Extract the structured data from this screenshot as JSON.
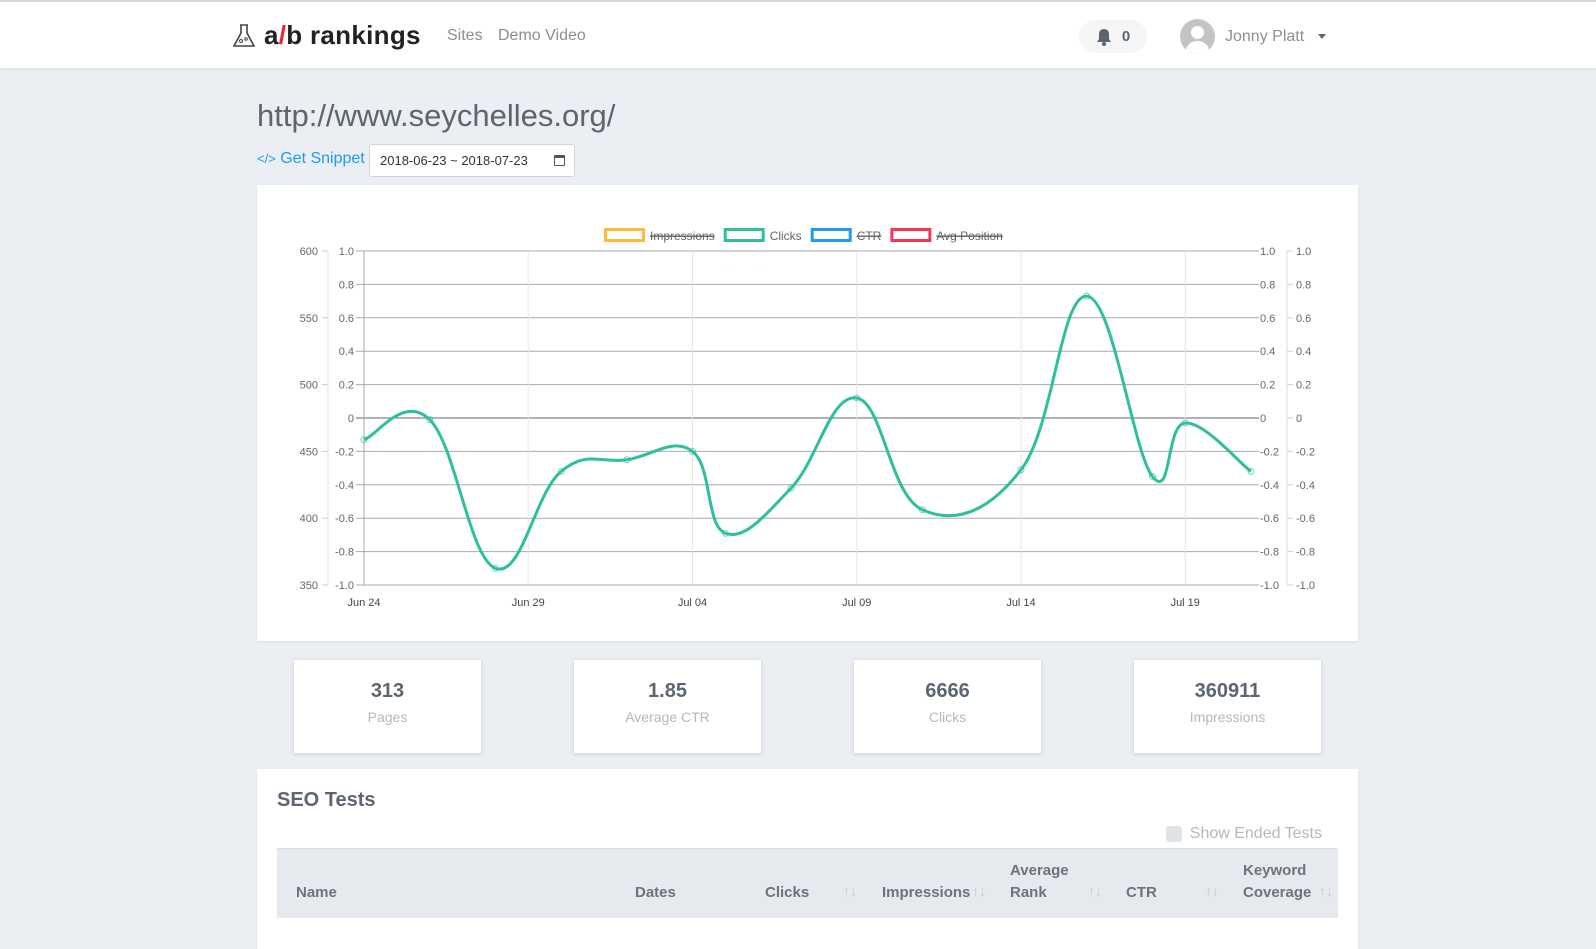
{
  "navbar": {
    "logo_text_a": "a",
    "logo_text_slash": "/",
    "logo_text_b": "b rankings",
    "links": [
      "Sites",
      "Demo Video"
    ],
    "notifications_count": "0",
    "user_name": "Jonny Platt"
  },
  "page": {
    "title": "http://www.seychelles.org/",
    "get_snippet_label": "Get Snippet",
    "get_snippet_icon": "</>",
    "date_range": "2018-06-23 ~ 2018-07-23"
  },
  "chart_data": {
    "type": "line",
    "legend": [
      {
        "name": "Impressions",
        "color": "#ffb83a",
        "hidden": true
      },
      {
        "name": "Clicks",
        "color": "#2fbf9f",
        "hidden": false
      },
      {
        "name": "CTR",
        "color": "#1e9bf0",
        "hidden": true
      },
      {
        "name": "Avg Position",
        "color": "#f5365c",
        "hidden": true
      }
    ],
    "legend_position": "top",
    "grid": true,
    "x_ticks": [
      "Jun 24",
      "Jun 29",
      "Jul 04",
      "Jul 09",
      "Jul 14",
      "Jul 19"
    ],
    "axes": {
      "left_outer": {
        "ticks": [
          "600",
          "550",
          "500",
          "450",
          "400",
          "350"
        ],
        "range": [
          350,
          600
        ]
      },
      "left_inner": {
        "ticks": [
          "1.0",
          "0.8",
          "0.6",
          "0.4",
          "0.2",
          "0",
          "-0.2",
          "-0.4",
          "-0.6",
          "-0.8",
          "-1.0"
        ],
        "range": [
          -1,
          1
        ]
      },
      "right_inner": {
        "ticks": [
          "1.0",
          "0.8",
          "0.6",
          "0.4",
          "0.2",
          "0",
          "-0.2",
          "-0.4",
          "-0.6",
          "-0.8",
          "-1.0"
        ],
        "range": [
          -1,
          1
        ]
      },
      "right_outer": {
        "ticks": [
          "1.0",
          "0.8",
          "0.6",
          "0.4",
          "0.2",
          "0",
          "-0.2",
          "-0.4",
          "-0.6",
          "-0.8",
          "-1.0"
        ],
        "range": [
          -1,
          1
        ]
      }
    },
    "series": [
      {
        "name": "Clicks",
        "color": "#2fbf9f",
        "x": [
          "2018-06-24",
          "2018-06-26",
          "2018-06-28",
          "2018-06-30",
          "2018-07-02",
          "2018-07-04",
          "2018-07-05",
          "2018-07-07",
          "2018-07-09",
          "2018-07-11",
          "2018-07-14",
          "2018-07-16",
          "2018-07-18",
          "2018-07-19",
          "2018-07-21"
        ],
        "y": [
          -0.13,
          -0.01,
          -0.9,
          -0.32,
          -0.25,
          -0.2,
          -0.69,
          -0.42,
          0.12,
          -0.55,
          -0.31,
          0.73,
          -0.35,
          -0.03,
          -0.32
        ]
      }
    ]
  },
  "stats": [
    {
      "value": "313",
      "label": "Pages"
    },
    {
      "value": "1.85",
      "label": "Average CTR"
    },
    {
      "value": "6666",
      "label": "Clicks"
    },
    {
      "value": "360911",
      "label": "Impressions"
    }
  ],
  "seo_tests": {
    "title": "SEO Tests",
    "show_ended_label": "Show Ended Tests",
    "show_ended_checked": false,
    "columns": [
      "Name",
      "Dates",
      "Clicks",
      "Impressions",
      "Average Rank",
      "CTR",
      "Keyword Coverage"
    ],
    "sort_icon": "↑↓"
  }
}
